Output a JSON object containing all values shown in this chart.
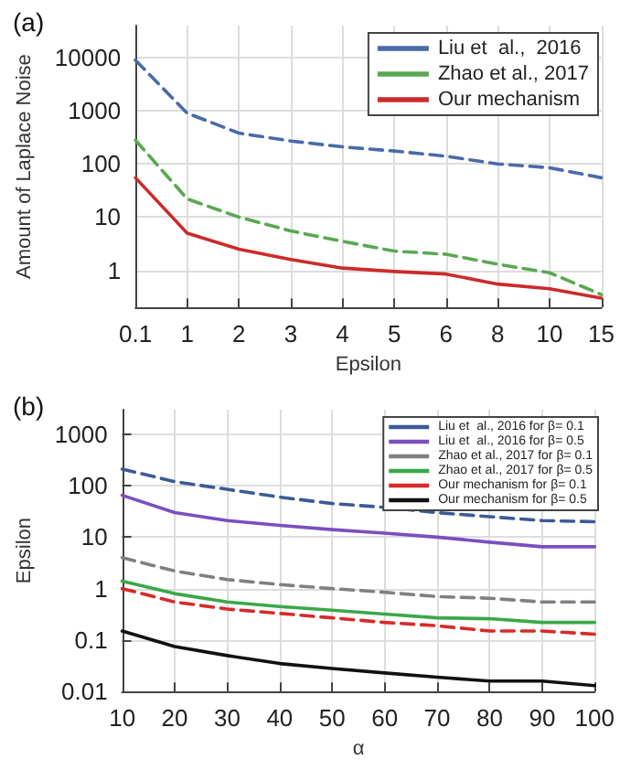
{
  "chart_data": [
    {
      "type": "line",
      "title": "(a)",
      "xlabel": "Epsilon",
      "ylabel": "Amount of Laplace Noise",
      "categories": [
        "0.1",
        "1",
        "2",
        "3",
        "4",
        "5",
        "6",
        "8",
        "10",
        "15"
      ],
      "log": "y",
      "ylim": [
        0.2,
        40000
      ],
      "yticks": [
        1,
        10,
        100,
        1000,
        10000
      ],
      "grid": true,
      "legend": "top right",
      "marker": "none",
      "series": [
        {
          "name": "Liu et  al.,  2016",
          "color": "#4a6aa8",
          "line_style": "dashed",
          "values": [
            9000,
            900,
            380,
            270,
            210,
            175,
            140,
            100,
            85,
            55
          ]
        },
        {
          "name": "Zhao et al., 2017",
          "color": "#5aa850",
          "line_style": "dashed",
          "values": [
            280,
            22,
            10,
            5.5,
            3.5,
            2.3,
            2,
            1.3,
            0.9,
            0.35
          ]
        },
        {
          "name": "Our mechanism",
          "color": "#cc2a2a",
          "line_style": "solid",
          "values": [
            55,
            5,
            2.5,
            1.6,
            1.1,
            0.95,
            0.85,
            0.55,
            0.45,
            0.3
          ]
        }
      ]
    },
    {
      "type": "line",
      "title": "(b)",
      "xlabel": "α",
      "ylabel": "Epsilon",
      "x": [
        10,
        20,
        30,
        40,
        50,
        60,
        70,
        80,
        90,
        100
      ],
      "xlim": [
        10,
        100
      ],
      "xticks": [
        10,
        20,
        30,
        40,
        50,
        60,
        70,
        80,
        90,
        100
      ],
      "log": "y",
      "ylim": [
        0.01,
        3000
      ],
      "yticks": [
        0.01,
        0.1,
        1,
        10,
        100,
        1000
      ],
      "grid": true,
      "legend": "top right",
      "marker": "none",
      "series": [
        {
          "name": "Liu et  al., 2016 for β= 0.1",
          "color": "#3c5a96",
          "line_style": "dashed",
          "values": [
            210,
            120,
            85,
            60,
            45,
            38,
            30,
            25,
            21,
            20
          ]
        },
        {
          "name": "Liu et  al., 2016 for β= 0.5",
          "color": "#7a4ec0",
          "line_style": "solid",
          "values": [
            65,
            30,
            21,
            17,
            14,
            12,
            10,
            8,
            6.5,
            6.5
          ]
        },
        {
          "name": "Zhao et al., 2017 for β= 0.1",
          "color": "#808080",
          "line_style": "dashed",
          "values": [
            4,
            2.2,
            1.5,
            1.2,
            1.0,
            0.85,
            0.7,
            0.65,
            0.55,
            0.55
          ]
        },
        {
          "name": "Zhao et al., 2017 for β= 0.5",
          "color": "#3aa848",
          "line_style": "solid",
          "values": [
            1.4,
            0.8,
            0.55,
            0.45,
            0.38,
            0.32,
            0.27,
            0.26,
            0.22,
            0.22
          ]
        },
        {
          "name": "Our mechanism for β= 0.1",
          "color": "#d82a2a",
          "line_style": "dashed",
          "values": [
            1.0,
            0.55,
            0.4,
            0.33,
            0.27,
            0.22,
            0.19,
            0.15,
            0.15,
            0.13
          ]
        },
        {
          "name": "Our mechanism for β= 0.5",
          "color": "#111111",
          "line_style": "solid",
          "values": [
            0.15,
            0.075,
            0.05,
            0.035,
            0.028,
            0.023,
            0.019,
            0.016,
            0.016,
            0.013
          ]
        }
      ]
    }
  ]
}
